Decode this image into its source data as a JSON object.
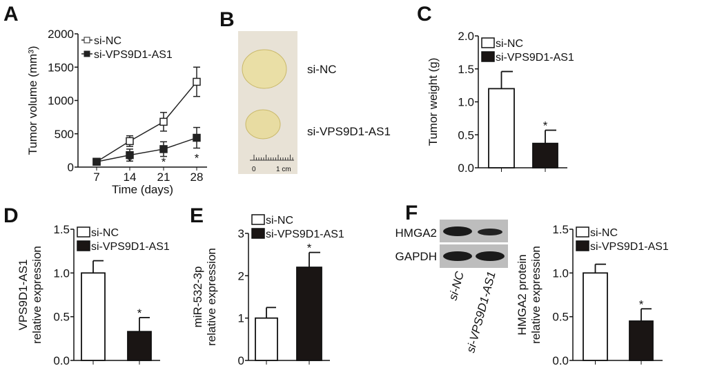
{
  "panel_labels": [
    "A",
    "B",
    "C",
    "D",
    "E",
    "F"
  ],
  "photo": {
    "labels": [
      "si-NC",
      "si-VPS9D1-AS1"
    ],
    "ruler_labels": [
      "0",
      "1 cm"
    ]
  },
  "blot": {
    "bands": [
      "HMGA2",
      "GAPDH"
    ],
    "lanes": [
      "si-NC",
      "si-VPS9D1-AS1"
    ]
  },
  "colors": {
    "si-NC": "#ffffff",
    "si-VPS9D1-AS1": "#1a1514",
    "axis": "#111111"
  },
  "chart_data": [
    {
      "panel": "A",
      "type": "line",
      "xlabel": "Time (days)",
      "ylabel": "Tumor volume (mm³)",
      "x": [
        7,
        14,
        21,
        28
      ],
      "xticks": [
        "7",
        "14",
        "21",
        "28"
      ],
      "yticks": [
        "0",
        "500",
        "1000",
        "1500",
        "2000"
      ],
      "ylim": [
        0,
        2000
      ],
      "legend": "top-left",
      "grid": false,
      "series": [
        {
          "name": "si-NC",
          "marker": "open-square",
          "values": [
            80,
            390,
            680,
            1280
          ],
          "err": [
            20,
            80,
            140,
            220
          ]
        },
        {
          "name": "si-VPS9D1-AS1",
          "marker": "filled-square",
          "values": [
            80,
            180,
            270,
            440
          ],
          "err": [
            20,
            90,
            110,
            155
          ]
        }
      ],
      "annotations": [
        {
          "x": 14,
          "text": "*"
        },
        {
          "x": 21,
          "text": "*"
        },
        {
          "x": 28,
          "text": "*"
        }
      ]
    },
    {
      "panel": "C",
      "type": "bar",
      "ylabel": "Tumor weight (g)",
      "yticks": [
        "0.0",
        "0.5",
        "1.0",
        "1.5",
        "2.0"
      ],
      "ylim": [
        0,
        2.0
      ],
      "legend": "top-left",
      "series": [
        {
          "name": "si-NC",
          "values": [
            1.2
          ],
          "err": [
            0.26
          ]
        },
        {
          "name": "si-VPS9D1-AS1",
          "values": [
            0.37
          ],
          "err": [
            0.2
          ],
          "annotation": "*"
        }
      ]
    },
    {
      "panel": "D",
      "type": "bar",
      "ylabel": [
        "VPS9D1-AS1",
        "relative expression"
      ],
      "yticks": [
        "0.0",
        "0.5",
        "1.0",
        "1.5"
      ],
      "ylim": [
        0,
        1.5
      ],
      "legend": "top-left",
      "series": [
        {
          "name": "si-NC",
          "values": [
            1.0
          ],
          "err": [
            0.14
          ]
        },
        {
          "name": "si-VPS9D1-AS1",
          "values": [
            0.33
          ],
          "err": [
            0.16
          ],
          "annotation": "*"
        }
      ]
    },
    {
      "panel": "E",
      "type": "bar",
      "ylabel": [
        "miR-532-3p",
        "relative expression"
      ],
      "yticks": [
        "0",
        "1",
        "2",
        "3"
      ],
      "ylim": [
        0,
        3
      ],
      "legend": "top-left",
      "series": [
        {
          "name": "si-NC",
          "values": [
            1.0
          ],
          "err": [
            0.25
          ]
        },
        {
          "name": "si-VPS9D1-AS1",
          "values": [
            2.2
          ],
          "err": [
            0.35
          ],
          "annotation": "*"
        }
      ]
    },
    {
      "panel": "F",
      "type": "bar",
      "ylabel": [
        "HMGA2 protein",
        "relative expression"
      ],
      "yticks": [
        "0.0",
        "0.5",
        "1.0",
        "1.5"
      ],
      "ylim": [
        0,
        1.5
      ],
      "legend": "top-left",
      "series": [
        {
          "name": "si-NC",
          "values": [
            1.0
          ],
          "err": [
            0.1
          ]
        },
        {
          "name": "si-VPS9D1-AS1",
          "values": [
            0.45
          ],
          "err": [
            0.14
          ],
          "annotation": "*"
        }
      ]
    }
  ]
}
